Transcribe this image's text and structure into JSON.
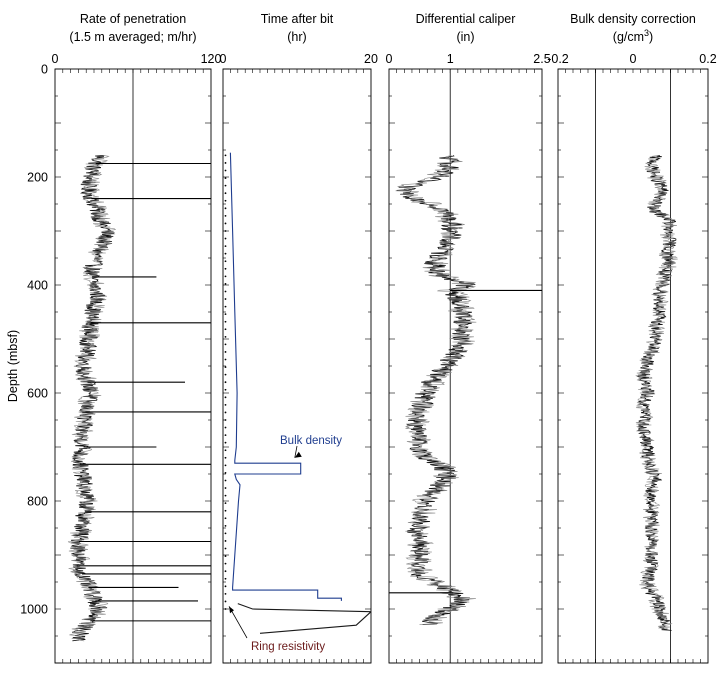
{
  "chart_data": [
    {
      "type": "line",
      "title_line1": "Rate of penetration",
      "title_line2": "(1.5 m averaged; m/hr)",
      "xlim": [
        0,
        120
      ],
      "x_ticks": [
        "0",
        "120"
      ],
      "ylabel": "Depth (mbsf)",
      "ylim": [
        0,
        1100
      ],
      "y_ticks": [
        "0",
        "200",
        "400",
        "600",
        "800",
        "1000"
      ],
      "reference_line_x": 60,
      "series": [
        {
          "depth": [
            160,
            180,
            200,
            220,
            240,
            260,
            280,
            300,
            320,
            340,
            360,
            380,
            400,
            420,
            440,
            460,
            480,
            500,
            520,
            540,
            560,
            580,
            600,
            620,
            640,
            660,
            680,
            700,
            720,
            740,
            760,
            780,
            800,
            820,
            840,
            860,
            880,
            900,
            920,
            940,
            960,
            980,
            1000,
            1020,
            1040,
            1060
          ],
          "value": [
            35,
            30,
            27,
            25,
            28,
            32,
            35,
            40,
            38,
            33,
            30,
            28,
            30,
            33,
            30,
            28,
            27,
            26,
            25,
            23,
            22,
            25,
            28,
            25,
            23,
            22,
            20,
            22,
            18,
            20,
            22,
            23,
            25,
            23,
            21,
            20,
            18,
            19,
            17,
            22,
            26,
            30,
            34,
            28,
            20,
            18
          ]
        }
      ],
      "spikes": [
        {
          "depth": 175,
          "value": 120
        },
        {
          "depth": 240,
          "value": 120
        },
        {
          "depth": 385,
          "value": 78
        },
        {
          "depth": 470,
          "value": 120
        },
        {
          "depth": 580,
          "value": 100
        },
        {
          "depth": 635,
          "value": 120
        },
        {
          "depth": 700,
          "value": 78
        },
        {
          "depth": 732,
          "value": 120
        },
        {
          "depth": 820,
          "value": 120
        },
        {
          "depth": 875,
          "value": 120
        },
        {
          "depth": 920,
          "value": 120
        },
        {
          "depth": 935,
          "value": 120
        },
        {
          "depth": 960,
          "value": 95
        },
        {
          "depth": 985,
          "value": 110
        },
        {
          "depth": 1022,
          "value": 120
        }
      ]
    },
    {
      "type": "line",
      "title_line1": "Time after bit",
      "title_line2": "(hr)",
      "xlim": [
        0,
        20
      ],
      "x_ticks": [
        "0",
        "20"
      ],
      "ylim": [
        0,
        1100
      ],
      "series": [
        {
          "name": "Bulk density",
          "color": "#1f3d8f",
          "depth": [
            155,
            300,
            450,
            600,
            700,
            725,
            730,
            730,
            750,
            750,
            760,
            770,
            800,
            900,
            960,
            965,
            965,
            980,
            980,
            985
          ],
          "value": [
            1,
            1.3,
            1.6,
            1.9,
            1.8,
            1.6,
            1.6,
            10.5,
            10.5,
            1.6,
            1.8,
            2.3,
            2.1,
            1.6,
            1.3,
            1.3,
            12.8,
            12.8,
            16,
            16
          ]
        },
        {
          "name": "Ring resistivity",
          "color": "#1a1a1a",
          "depth": [
            990,
            1000,
            1000,
            1005,
            1005,
            1030,
            1030,
            1045
          ],
          "value": [
            2,
            4,
            4,
            20,
            20,
            18,
            18,
            5
          ]
        }
      ],
      "annotations": [
        "Bulk density",
        "Ring resistivity"
      ]
    },
    {
      "type": "line",
      "title_line1": "Differential caliper",
      "title_line2": "(in)",
      "xlim": [
        0,
        2.5
      ],
      "x_ticks": [
        "0",
        "1",
        "2.5"
      ],
      "ylim": [
        0,
        1100
      ],
      "reference_line_x": 1,
      "series": [
        {
          "depth": [
            160,
            180,
            200,
            210,
            220,
            230,
            240,
            260,
            280,
            300,
            320,
            340,
            360,
            380,
            395,
            400,
            410,
            420,
            440,
            460,
            480,
            500,
            520,
            540,
            560,
            580,
            600,
            620,
            640,
            660,
            680,
            700,
            720,
            740,
            760,
            780,
            800,
            820,
            840,
            860,
            880,
            900,
            920,
            940,
            960,
            980,
            1000,
            1020,
            1030
          ],
          "value": [
            0.95,
            1.0,
            0.8,
            0.5,
            0.25,
            0.3,
            0.45,
            0.9,
            1.0,
            1.05,
            0.95,
            0.85,
            0.75,
            0.8,
            1.2,
            1.3,
            1.0,
            1.1,
            1.15,
            1.25,
            1.2,
            1.2,
            1.15,
            1.0,
            0.85,
            0.7,
            0.6,
            0.55,
            0.5,
            0.45,
            0.45,
            0.5,
            0.6,
            0.9,
            0.95,
            0.75,
            0.6,
            0.55,
            0.5,
            0.45,
            0.5,
            0.5,
            0.45,
            0.55,
            0.9,
            1.2,
            1.0,
            0.7,
            0.65
          ]
        }
      ],
      "spikes": [
        {
          "depth": 410,
          "value": 2.5
        },
        {
          "depth": 970,
          "value": 0.0
        }
      ]
    },
    {
      "type": "line",
      "title_line1": "Bulk density correction",
      "title_line2_base": "(g/cm",
      "title_line2_sup": "3",
      "title_line2_end": ")",
      "xlim": [
        -0.2,
        0.2
      ],
      "x_ticks": [
        "-0.2",
        "0",
        "0.2"
      ],
      "ylim": [
        0,
        1100
      ],
      "reference_lines_x": [
        -0.1,
        0.1
      ],
      "series": [
        {
          "depth": [
            160,
            180,
            200,
            220,
            240,
            260,
            280,
            300,
            320,
            340,
            360,
            380,
            400,
            420,
            440,
            460,
            480,
            500,
            520,
            540,
            560,
            580,
            600,
            620,
            640,
            660,
            680,
            700,
            720,
            740,
            760,
            780,
            800,
            820,
            840,
            860,
            880,
            900,
            920,
            940,
            960,
            980,
            1000,
            1020,
            1040
          ],
          "value": [
            0.06,
            0.05,
            0.06,
            0.08,
            0.07,
            0.05,
            0.1,
            0.09,
            0.1,
            0.09,
            0.1,
            0.08,
            0.08,
            0.07,
            0.07,
            0.07,
            0.06,
            0.06,
            0.05,
            0.04,
            0.03,
            0.03,
            0.04,
            0.03,
            0.03,
            0.03,
            0.03,
            0.04,
            0.04,
            0.05,
            0.06,
            0.05,
            0.05,
            0.05,
            0.05,
            0.05,
            0.05,
            0.05,
            0.05,
            0.04,
            0.04,
            0.06,
            0.07,
            0.08,
            0.09
          ]
        }
      ]
    }
  ]
}
